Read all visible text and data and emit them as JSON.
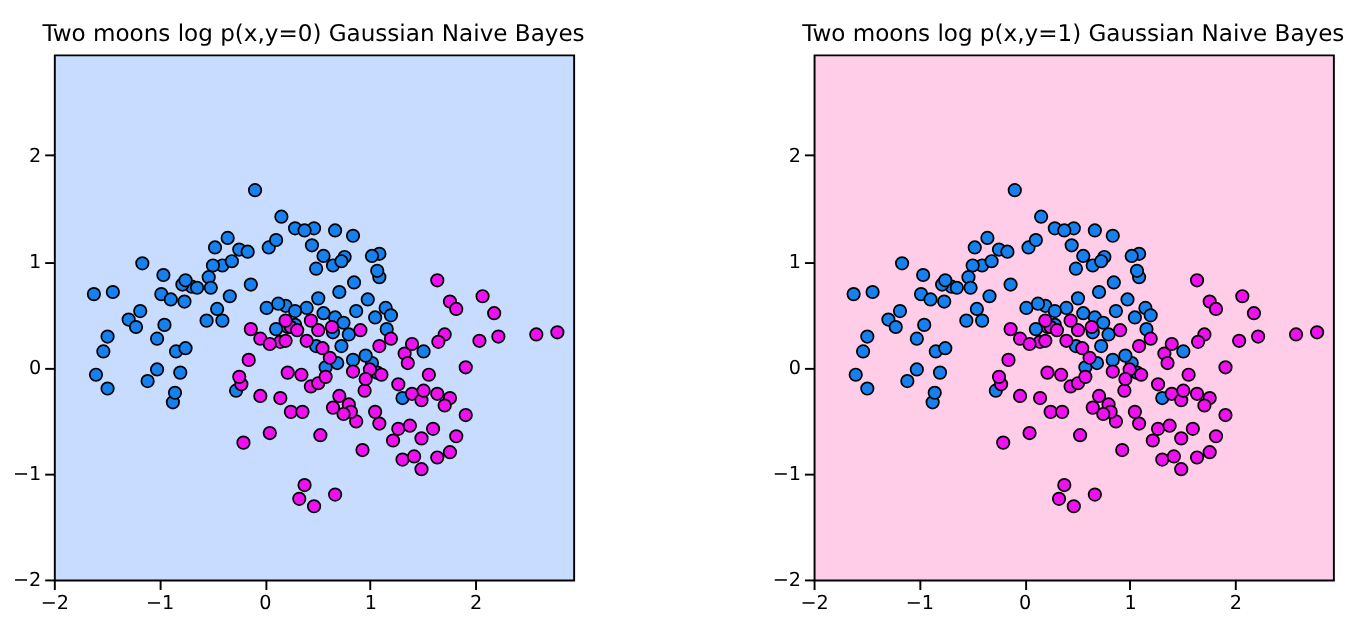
{
  "chart_data": [
    {
      "type": "scatter",
      "title": "Two moons log p(x,y=0) Gaussian Naive Bayes",
      "xlim": [
        -2,
        2.93
      ],
      "ylim": [
        -2,
        2.95
      ],
      "xticks": [
        -2,
        -1,
        0,
        1,
        2
      ],
      "yticks": [
        -2,
        -1,
        0,
        1,
        2
      ],
      "grid": false,
      "series": [
        {
          "color": "#1580ee",
          "x": [
            -0.09,
            0.16,
            0.29,
            0.47,
            -0.35,
            -0.24,
            -0.16,
            -0.47,
            0.45,
            0.67,
            0.84,
            0.76,
            0.56,
            0.65,
            0.49,
            0.73,
            0.04,
            0.11,
            -0.4,
            -0.31,
            -0.49,
            -0.53,
            -0.69,
            -0.78,
            -0.98,
            -0.89,
            -1.16,
            -0.96,
            -0.75,
            -1.44,
            -1.18,
            -1.29,
            -1.22,
            -1.49,
            -0.95,
            -0.76,
            -0.64,
            -0.51,
            -0.33,
            -0.13,
            0.02,
            0.2,
            0.4,
            0.13,
            0.51,
            0.71,
            0.85,
            0.87,
            0.67,
            0.75,
            0.29,
            0.22,
            0.11,
            0.84,
            0.58,
            1.05,
            1.15,
            1.16,
            0.98,
            1.09,
            1.09,
            1.02,
            0.49,
            -1.02,
            -1.11,
            -0.84,
            -0.87,
            -0.85,
            -1.62,
            -1.53,
            -1.6,
            -1.49,
            -0.27,
            -0.4,
            -0.45,
            -0.55,
            -0.8,
            0.29,
            0.56,
            0.65,
            0.73,
            0.69,
            1.02,
            -0.75,
            -1.02,
            1.2,
            1.51,
            1.31,
            0.96,
            1.07,
            0.8,
            1.07,
            0.38
          ],
          "values": [
            1.67,
            1.42,
            1.31,
            1.31,
            1.22,
            1.11,
            1.09,
            1.13,
            1.15,
            1.29,
            1.24,
            1.04,
            1.05,
            0.96,
            0.93,
            1.0,
            1.13,
            1.2,
            0.96,
            1.0,
            0.96,
            0.85,
            0.76,
            0.78,
            0.69,
            0.64,
            0.98,
            0.87,
            0.82,
            0.71,
            0.53,
            0.45,
            0.38,
            0.29,
            0.4,
            0.62,
            0.75,
            0.75,
            0.67,
            0.78,
            0.56,
            0.58,
            0.56,
            0.6,
            0.65,
            0.71,
            0.8,
            0.53,
            0.47,
            0.42,
            0.53,
            0.38,
            0.36,
            0.07,
            0.0,
            0.47,
            0.56,
            0.36,
            0.64,
            0.85,
            1.07,
            1.05,
            0.2,
            -0.02,
            -0.13,
            0.15,
            -0.33,
            -0.24,
            0.69,
            0.15,
            -0.07,
            -0.2,
            -0.22,
            0.44,
            0.55,
            0.44,
            -0.05,
            0.4,
            0.51,
            0.33,
            0.2,
            0.04,
            0.04,
            0.18,
            0.27,
            0.49,
            0.15,
            -0.29,
            0.11,
            -0.05,
            0.31,
            0.91,
            1.29
          ]
        },
        {
          "color": "#ee10ee",
          "x": [
            -0.13,
            -0.04,
            0.25,
            0.2,
            0.15,
            0.2,
            0.31,
            0.51,
            0.05,
            0.64,
            0.44,
            0.91,
            0.62,
            1.09,
            1.64,
            1.76,
            1.82,
            2.18,
            1.71,
            1.65,
            2.04,
            2.22,
            2.58,
            2.78,
            2.07,
            1.33,
            1.4,
            1.11,
            1.0,
            1.05,
            1.36,
            0.15,
            0.25,
            0.35,
            0.44,
            0.51,
            0.58,
            0.22,
            0.84,
            0.8,
            0.95,
            1.27,
            1.4,
            1.49,
            1.51,
            1.56,
            1.64,
            1.76,
            1.71,
            1.82,
            1.6,
            1.27,
            1.38,
            1.22,
            0.93,
            0.87,
            1.09,
            0.53,
            0.33,
            0.47,
            0.38,
            0.67,
            0.82,
            0.05,
            -0.22,
            -0.24,
            -0.04,
            -0.15,
            1.2,
            1.49,
            1.31,
            1.42,
            1.49,
            1.64,
            1.76,
            1.91,
            1.91,
            0.71,
            0.75,
            0.96,
            -0.2,
            0.4,
            0.36,
            0.65,
            0.55
          ],
          "values": [
            0.36,
            0.27,
            0.38,
            0.44,
            0.24,
            0.25,
            0.35,
            0.35,
            0.22,
            0.38,
            0.44,
            0.35,
            0.09,
            0.2,
            0.82,
            0.62,
            0.55,
            0.51,
            0.31,
            0.24,
            0.25,
            0.29,
            0.31,
            0.33,
            0.67,
            0.13,
            0.22,
            -0.07,
            -0.02,
            -0.42,
            0.04,
            -0.29,
            -0.42,
            -0.07,
            -0.18,
            -0.15,
            -0.09,
            -0.05,
            -0.04,
            -0.35,
            -0.22,
            -0.16,
            -0.25,
            -0.31,
            -0.22,
            -0.07,
            -0.25,
            -0.29,
            -0.36,
            -0.65,
            -0.58,
            -0.58,
            -0.55,
            -0.69,
            -0.78,
            -0.51,
            -0.53,
            -0.64,
            -1.24,
            -1.31,
            -1.11,
            -1.2,
            -0.42,
            -0.62,
            -0.16,
            -0.09,
            -0.27,
            0.07,
            0.27,
            -0.67,
            -0.87,
            -0.84,
            -0.96,
            -0.85,
            -0.8,
            -0.45,
            0.0,
            -0.27,
            -0.44,
            -0.11,
            -0.71,
            0.25,
            -0.42,
            -0.38,
            0.18
          ]
        }
      ]
    },
    {
      "type": "scatter",
      "title": "Two moons log p(x,y=1) Gaussian Naive Bayes",
      "xlim": [
        -2,
        2.93
      ],
      "ylim": [
        -2,
        2.95
      ],
      "xticks": [
        -2,
        -1,
        0,
        1,
        2
      ],
      "yticks": [
        -2,
        -1,
        0,
        1,
        2
      ],
      "grid": false,
      "series": [
        {
          "color": "#1580ee",
          "x": [
            -0.09,
            0.16,
            0.29,
            0.47,
            -0.35,
            -0.24,
            -0.16,
            -0.47,
            0.45,
            0.67,
            0.84,
            0.76,
            0.56,
            0.65,
            0.49,
            0.73,
            0.04,
            0.11,
            -0.4,
            -0.31,
            -0.49,
            -0.53,
            -0.69,
            -0.78,
            -0.98,
            -0.89,
            -1.16,
            -0.96,
            -0.75,
            -1.44,
            -1.18,
            -1.29,
            -1.22,
            -1.49,
            -0.95,
            -0.76,
            -0.64,
            -0.51,
            -0.33,
            -0.13,
            0.02,
            0.2,
            0.4,
            0.13,
            0.51,
            0.71,
            0.85,
            0.87,
            0.67,
            0.75,
            0.29,
            0.22,
            0.11,
            0.84,
            0.58,
            1.05,
            1.15,
            1.16,
            0.98,
            1.09,
            1.09,
            1.02,
            0.49,
            -1.02,
            -1.11,
            -0.84,
            -0.87,
            -0.85,
            -1.62,
            -1.53,
            -1.6,
            -1.49,
            -0.27,
            -0.4,
            -0.45,
            -0.55,
            -0.8,
            0.29,
            0.56,
            0.65,
            0.73,
            0.69,
            1.02,
            -0.75,
            -1.02,
            1.2,
            1.51,
            1.31,
            0.96,
            1.07,
            0.8,
            1.07,
            0.38
          ],
          "values": [
            1.67,
            1.42,
            1.31,
            1.31,
            1.22,
            1.11,
            1.09,
            1.13,
            1.15,
            1.29,
            1.24,
            1.04,
            1.05,
            0.96,
            0.93,
            1.0,
            1.13,
            1.2,
            0.96,
            1.0,
            0.96,
            0.85,
            0.76,
            0.78,
            0.69,
            0.64,
            0.98,
            0.87,
            0.82,
            0.71,
            0.53,
            0.45,
            0.38,
            0.29,
            0.4,
            0.62,
            0.75,
            0.75,
            0.67,
            0.78,
            0.56,
            0.58,
            0.56,
            0.6,
            0.65,
            0.71,
            0.8,
            0.53,
            0.47,
            0.42,
            0.53,
            0.38,
            0.36,
            0.07,
            0.0,
            0.47,
            0.56,
            0.36,
            0.64,
            0.85,
            1.07,
            1.05,
            0.2,
            -0.02,
            -0.13,
            0.15,
            -0.33,
            -0.24,
            0.69,
            0.15,
            -0.07,
            -0.2,
            -0.22,
            0.44,
            0.55,
            0.44,
            -0.05,
            0.4,
            0.51,
            0.33,
            0.2,
            0.04,
            0.04,
            0.18,
            0.27,
            0.49,
            0.15,
            -0.29,
            0.11,
            -0.05,
            0.31,
            0.91,
            1.29
          ]
        },
        {
          "color": "#ee10ee",
          "x": [
            -0.13,
            -0.04,
            0.25,
            0.2,
            0.15,
            0.2,
            0.31,
            0.51,
            0.05,
            0.64,
            0.44,
            0.91,
            0.62,
            1.09,
            1.64,
            1.76,
            1.82,
            2.18,
            1.71,
            1.65,
            2.04,
            2.22,
            2.58,
            2.78,
            2.07,
            1.33,
            1.4,
            1.11,
            1.0,
            1.05,
            1.36,
            0.15,
            0.25,
            0.35,
            0.44,
            0.51,
            0.58,
            0.22,
            0.84,
            0.8,
            0.95,
            1.27,
            1.4,
            1.49,
            1.51,
            1.56,
            1.64,
            1.76,
            1.71,
            1.82,
            1.6,
            1.27,
            1.38,
            1.22,
            0.93,
            0.87,
            1.09,
            0.53,
            0.33,
            0.47,
            0.38,
            0.67,
            0.82,
            0.05,
            -0.22,
            -0.24,
            -0.04,
            -0.15,
            1.2,
            1.49,
            1.31,
            1.42,
            1.49,
            1.64,
            1.76,
            1.91,
            1.91,
            0.71,
            0.75,
            0.96,
            -0.2,
            0.4,
            0.36,
            0.65,
            0.55
          ],
          "values": [
            0.36,
            0.27,
            0.38,
            0.44,
            0.24,
            0.25,
            0.35,
            0.35,
            0.22,
            0.38,
            0.44,
            0.35,
            0.09,
            0.2,
            0.82,
            0.62,
            0.55,
            0.51,
            0.31,
            0.24,
            0.25,
            0.29,
            0.31,
            0.33,
            0.67,
            0.13,
            0.22,
            -0.07,
            -0.02,
            -0.42,
            0.04,
            -0.29,
            -0.42,
            -0.07,
            -0.18,
            -0.15,
            -0.09,
            -0.05,
            -0.04,
            -0.35,
            -0.22,
            -0.16,
            -0.25,
            -0.31,
            -0.22,
            -0.07,
            -0.25,
            -0.29,
            -0.36,
            -0.65,
            -0.58,
            -0.58,
            -0.55,
            -0.69,
            -0.78,
            -0.51,
            -0.53,
            -0.64,
            -1.24,
            -1.31,
            -1.11,
            -1.2,
            -0.42,
            -0.62,
            -0.16,
            -0.09,
            -0.27,
            0.07,
            0.27,
            -0.67,
            -0.87,
            -0.84,
            -0.96,
            -0.85,
            -0.8,
            -0.45,
            0.0,
            -0.27,
            -0.44,
            -0.11,
            -0.71,
            0.25,
            -0.42,
            -0.38,
            0.18
          ]
        }
      ]
    }
  ]
}
